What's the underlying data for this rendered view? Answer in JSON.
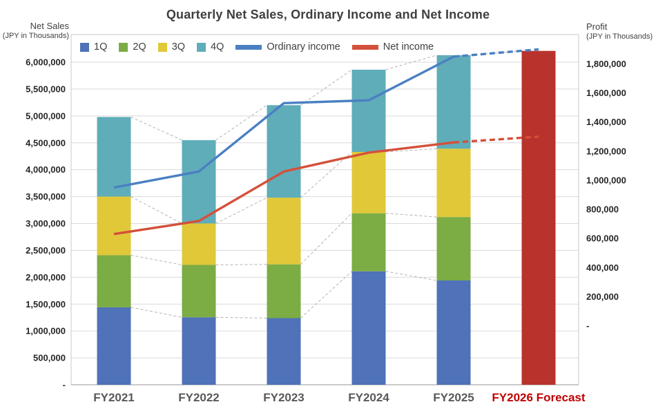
{
  "chart_data": {
    "type": "bar",
    "subtype": "stacked-column-with-overlay-lines",
    "title": "Quarterly Net Sales, Ordinary Income and Net Income",
    "categories": [
      "FY2021",
      "FY2022",
      "FY2023",
      "FY2024",
      "FY2025",
      "FY2026 Forecast"
    ],
    "forecast_category_index": 5,
    "left_axis": {
      "title": "Net Sales",
      "subtitle": "(JPY in Thousands)",
      "min": 0,
      "max": 6000000,
      "step": 500000,
      "zero_label": "-"
    },
    "right_axis": {
      "title": "Profit",
      "subtitle": "(JPY in Thousands)",
      "min": 0,
      "max": 1800000,
      "step": 200000,
      "zero_label": "-"
    },
    "bar_series": [
      {
        "name": "1Q",
        "color": "#4F72B8",
        "values": [
          1440000,
          1255000,
          1240000,
          2110000,
          1940000
        ]
      },
      {
        "name": "2Q",
        "color": "#7CAC44",
        "values": [
          970000,
          975000,
          1000000,
          1080000,
          1180000
        ]
      },
      {
        "name": "3Q",
        "color": "#E0C838",
        "values": [
          1090000,
          770000,
          1240000,
          1140000,
          1270000
        ]
      },
      {
        "name": "4Q",
        "color": "#5FADB9",
        "values": [
          1480000,
          1550000,
          1720000,
          1530000,
          1740000
        ]
      }
    ],
    "bar_totals": [
      4980000,
      4550000,
      5200000,
      5860000,
      6130000
    ],
    "forecast_bar": {
      "category": "FY2026 Forecast",
      "value": 6210000,
      "color": "#B9332D"
    },
    "line_series": [
      {
        "name": "Ordinary income",
        "color": "#4A80C2",
        "axis": "right",
        "values": [
          950000,
          1060000,
          1530000,
          1550000,
          1850000
        ],
        "forecast_value": 1900000
      },
      {
        "name": "Net income",
        "color": "#D4503A",
        "axis": "right",
        "values": [
          630000,
          720000,
          1060000,
          1190000,
          1260000
        ],
        "forecast_value": 1300000
      }
    ],
    "legend": [
      "1Q",
      "2Q",
      "3Q",
      "4Q",
      "Ordinary income",
      "Net income"
    ],
    "legend_position": "top-inside",
    "grid": true,
    "styles": {
      "grid_color": "#D9D9D9",
      "plot_border_color": "#C9C9C9",
      "axis_line_color": "#ABABAB",
      "connector_color": "#B3B3B3",
      "tick_label_color": "#262626",
      "x_label_color": "#595959",
      "forecast_label_color": "#C00000",
      "title_color": "#3F3F3F",
      "legend_text_color": "#404040"
    }
  }
}
